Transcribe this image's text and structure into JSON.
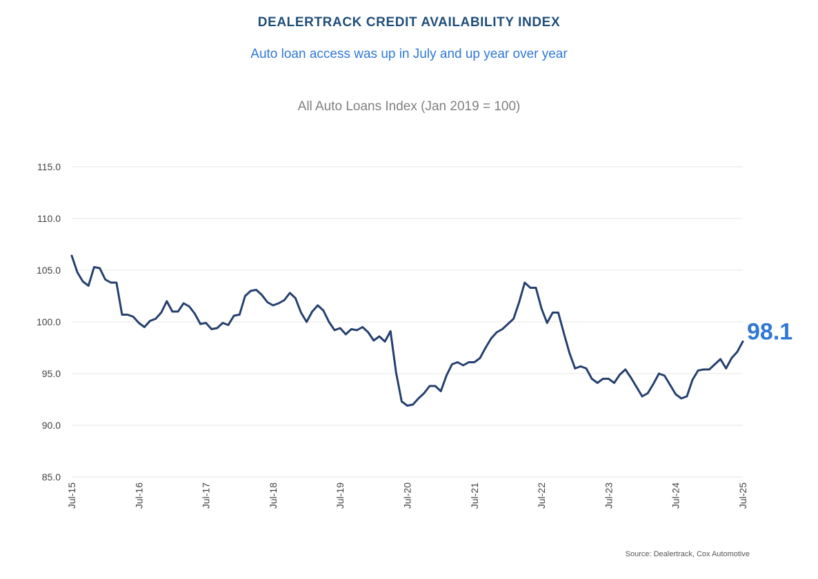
{
  "header": {
    "title": "DEALERTRACK CREDIT AVAILABILITY INDEX",
    "subtitle": "Auto loan access was up in July and up year over year",
    "chart_title": "All Auto Loans Index (Jan 2019 = 100)"
  },
  "footer": {
    "source": "Source: Dealertrack, Cox Automotive"
  },
  "colors": {
    "line": "#253f6e",
    "grid": "#e6e6e6",
    "title": "#1f4e79",
    "accent": "#2f78d6"
  },
  "chart_data": {
    "type": "line",
    "title": "All Auto Loans Index (Jan 2019 = 100)",
    "xlabel": "",
    "ylabel": "",
    "ylim": [
      85,
      115
    ],
    "yticks": [
      85,
      90,
      95,
      100,
      105,
      110,
      115
    ],
    "ytick_labels": [
      "85.0",
      "90.0",
      "95.0",
      "100.0",
      "105.0",
      "110.0",
      "115.0"
    ],
    "xtick_labels": [
      "Jul-15",
      "Jul-16",
      "Jul-17",
      "Jul-18",
      "Jul-19",
      "Jul-20",
      "Jul-21",
      "Jul-22",
      "Jul-23",
      "Jul-24",
      "Jul-25"
    ],
    "xtick_index": [
      0,
      12,
      24,
      36,
      48,
      60,
      72,
      84,
      96,
      108,
      120
    ],
    "end_label": "98.1",
    "grid": true,
    "series": [
      {
        "name": "All Auto Loans Index",
        "start": "Jul-15",
        "values": [
          106.4,
          104.8,
          103.9,
          103.5,
          105.3,
          105.2,
          104.1,
          103.8,
          103.8,
          100.7,
          100.7,
          100.5,
          99.9,
          99.5,
          100.1,
          100.3,
          100.9,
          102.0,
          101.0,
          101.0,
          101.8,
          101.5,
          100.8,
          99.8,
          99.9,
          99.3,
          99.4,
          99.9,
          99.7,
          100.6,
          100.7,
          102.5,
          103.0,
          103.1,
          102.6,
          101.9,
          101.6,
          101.8,
          102.1,
          102.8,
          102.3,
          100.9,
          100.0,
          101.0,
          101.6,
          101.1,
          100.0,
          99.2,
          99.4,
          98.8,
          99.3,
          99.2,
          99.5,
          99.0,
          98.2,
          98.6,
          98.1,
          99.1,
          95.1,
          92.3,
          91.9,
          92.0,
          92.6,
          93.1,
          93.8,
          93.8,
          93.3,
          94.8,
          95.9,
          96.1,
          95.8,
          96.1,
          96.1,
          96.5,
          97.5,
          98.4,
          99.0,
          99.3,
          99.8,
          100.3,
          101.9,
          103.8,
          103.3,
          103.3,
          101.3,
          99.9,
          100.9,
          100.9,
          98.9,
          97.0,
          95.5,
          95.7,
          95.5,
          94.5,
          94.1,
          94.5,
          94.5,
          94.1,
          94.9,
          95.4,
          94.6,
          93.7,
          92.8,
          93.1,
          94.0,
          95.0,
          94.8,
          93.9,
          93.0,
          92.6,
          92.8,
          94.4,
          95.3,
          95.4,
          95.4,
          95.9,
          96.4,
          95.5,
          96.5,
          97.1,
          98.1
        ]
      }
    ]
  }
}
